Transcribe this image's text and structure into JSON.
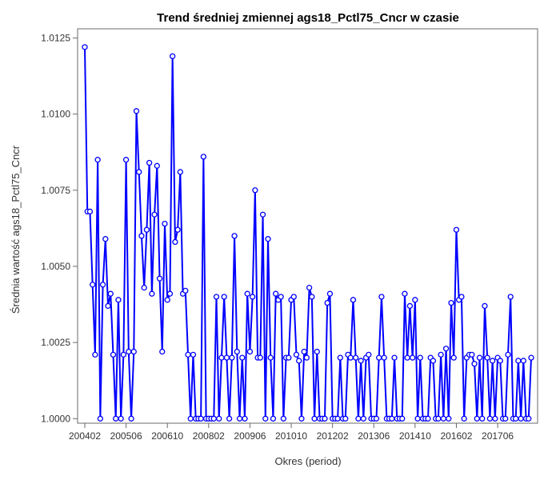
{
  "chart_data": {
    "type": "line",
    "title": "Trend średniej zmiennej ags18_Pctl75_Cncr w czasie",
    "xlabel": "Okres (period)",
    "ylabel": "Średnia wartość ags18_Pctl75_Cncr",
    "x_tick_labels": [
      "200402",
      "200506",
      "200610",
      "200802",
      "200906",
      "201010",
      "201202",
      "201306",
      "201410",
      "201602",
      "201706"
    ],
    "y_tick_labels": [
      "1.0000",
      "1.0025",
      "1.0050",
      "1.0075",
      "1.0100",
      "1.0125"
    ],
    "y_ticks": [
      1.0,
      1.0025,
      1.005,
      1.0075,
      1.01,
      1.0125
    ],
    "ylim": [
      0.99985,
      1.0128
    ],
    "grid": false,
    "legend": "none",
    "colors": {
      "line": "#0000ff",
      "marker": "#0000ff"
    },
    "series": [
      {
        "values": [
          1.0122,
          1.0068,
          1.0068,
          1.0044,
          1.0021,
          1.0085,
          1.0,
          1.0044,
          1.0059,
          1.0037,
          1.0041,
          1.0021,
          1.0,
          1.0039,
          1.0,
          1.0021,
          1.0085,
          1.0022,
          1.0,
          1.0022,
          1.0101,
          1.0081,
          1.006,
          1.0043,
          1.0062,
          1.0084,
          1.0041,
          1.0067,
          1.0083,
          1.0046,
          1.0022,
          1.0064,
          1.0039,
          1.0041,
          1.0119,
          1.0058,
          1.0062,
          1.0081,
          1.0041,
          1.0042,
          1.0021,
          1.0,
          1.0021,
          1.0,
          1.0,
          1.0,
          1.0086,
          1.0,
          1.0,
          1.0,
          1.0,
          1.004,
          1.0,
          1.002,
          1.004,
          1.002,
          1.0,
          1.002,
          1.006,
          1.0022,
          1.0,
          1.002,
          1.0,
          1.0041,
          1.0022,
          1.004,
          1.0075,
          1.002,
          1.002,
          1.0067,
          1.0,
          1.0059,
          1.002,
          1.0,
          1.0041,
          1.0039,
          1.004,
          1.0,
          1.002,
          1.002,
          1.0039,
          1.004,
          1.0021,
          1.0019,
          1.0,
          1.0022,
          1.002,
          1.0043,
          1.004,
          1.0,
          1.0022,
          1.0,
          1.0,
          1.0,
          1.0038,
          1.0041,
          1.0,
          1.0,
          1.0,
          1.002,
          1.0,
          1.0,
          1.0021,
          1.002,
          1.0039,
          1.002,
          1.0,
          1.0019,
          1.0,
          1.002,
          1.0021,
          1.0,
          1.0,
          1.0,
          1.002,
          1.004,
          1.002,
          1.0,
          1.0,
          1.0,
          1.002,
          1.0,
          1.0,
          1.0,
          1.0041,
          1.002,
          1.0037,
          1.002,
          1.0039,
          1.0,
          1.002,
          1.0,
          1.0,
          1.0,
          1.002,
          1.0019,
          1.0,
          1.0,
          1.0021,
          1.0,
          1.0023,
          1.0,
          1.0038,
          1.002,
          1.0062,
          1.0039,
          1.004,
          1.0,
          1.002,
          1.0021,
          1.0021,
          1.0018,
          1.0,
          1.002,
          1.0,
          1.0037,
          1.002,
          1.0,
          1.0019,
          1.0,
          1.002,
          1.0019,
          1.0,
          1.0,
          1.0021,
          1.004,
          1.0,
          1.0,
          1.0019,
          1.0,
          1.0019,
          1.0,
          1.0,
          1.002
        ]
      }
    ]
  }
}
